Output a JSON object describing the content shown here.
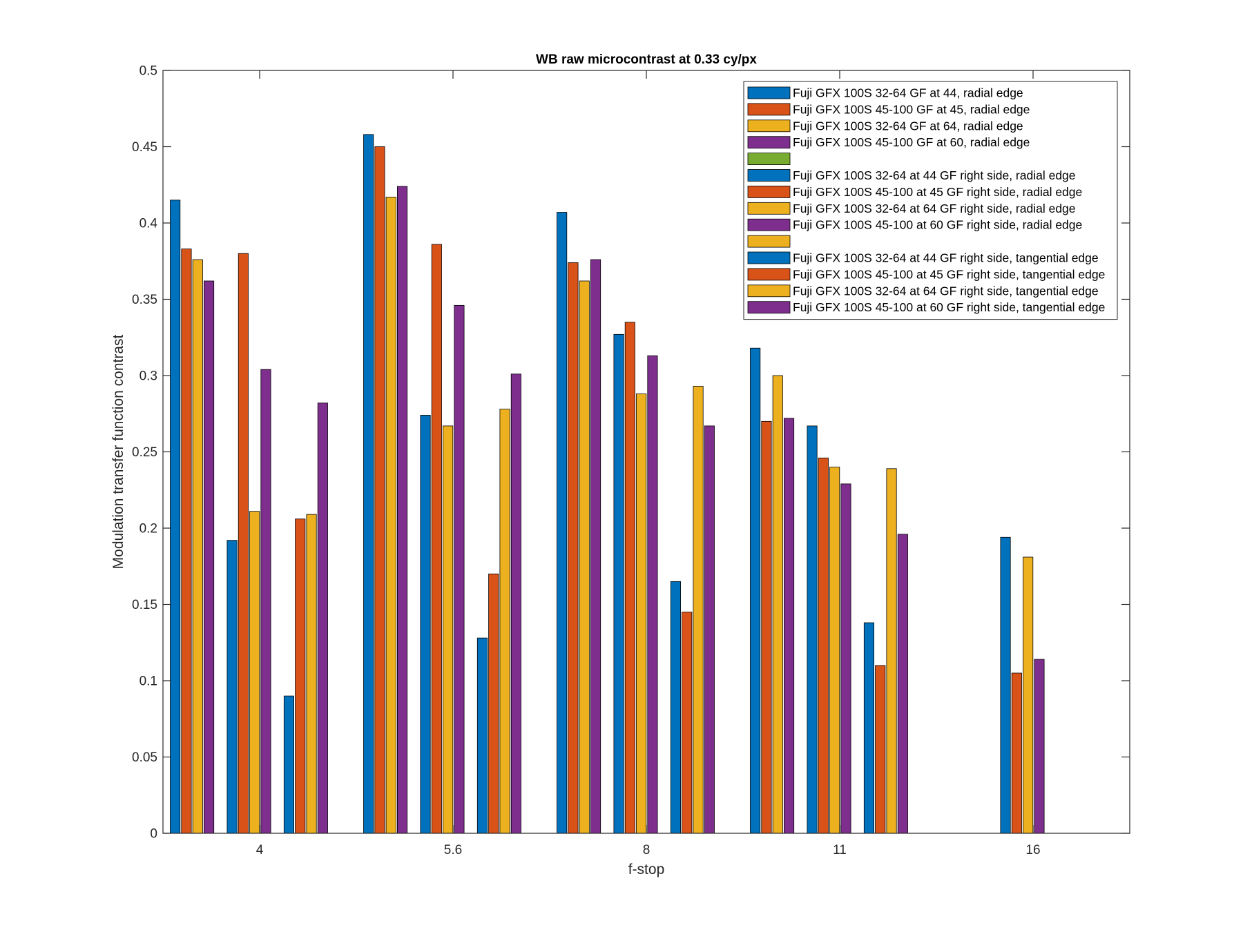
{
  "chart_data": {
    "type": "bar",
    "title": "WB raw  microcontrast at 0.33 cy/px",
    "xlabel": "f-stop",
    "ylabel": "Modulation transfer function contrast",
    "ylim": [
      0,
      0.5
    ],
    "yticks": [
      "0",
      "0.05",
      "0.1",
      "0.15",
      "0.2",
      "0.25",
      "0.3",
      "0.35",
      "0.4",
      "0.45",
      "0.5"
    ],
    "categories": [
      "4",
      "5.6",
      "8",
      "11",
      "16"
    ],
    "groups_per_category": 3,
    "legend_position": "top-right",
    "colors": {
      "blue": "#0072BD",
      "orange": "#D95319",
      "yellow": "#EDB120",
      "purple": "#7E2F8E",
      "green": "#77AC30"
    },
    "legend": [
      {
        "label": "Fuji GFX 100S 32-64 GF at 44, radial edge",
        "color": "#0072BD"
      },
      {
        "label": "Fuji GFX 100S 45-100 GF at 45, radial edge",
        "color": "#D95319"
      },
      {
        "label": "Fuji GFX 100S 32-64 GF at 64, radial edge",
        "color": "#EDB120"
      },
      {
        "label": "Fuji GFX 100S 45-100 GF at 60, radial edge",
        "color": "#7E2F8E"
      },
      {
        "label": "",
        "color": "#77AC30"
      },
      {
        "label": "Fuji GFX 100S 32-64 at 44 GF right side, radial edge",
        "color": "#0072BD"
      },
      {
        "label": "Fuji GFX 100S 45-100 at 45 GF right side, radial edge",
        "color": "#D95319"
      },
      {
        "label": "Fuji GFX 100S 32-64 at 64 GF right side, radial edge",
        "color": "#EDB120"
      },
      {
        "label": "Fuji GFX 100S 45-100 at 60 GF right side, radial edge",
        "color": "#7E2F8E"
      },
      {
        "label": "",
        "color": "#EDB120"
      },
      {
        "label": "Fuji GFX 100S 32-64 at 44 GF right side, tangential edge",
        "color": "#0072BD"
      },
      {
        "label": "Fuji GFX 100S 45-100 at 45 GF right side, tangential edge",
        "color": "#D95319"
      },
      {
        "label": "Fuji GFX 100S 32-64 at 64 GF right side, tangential edge",
        "color": "#EDB120"
      },
      {
        "label": "Fuji GFX 100S 45-100 at 60 GF right side, tangential edge",
        "color": "#7E2F8E"
      }
    ],
    "series": [
      {
        "name": "Fuji GFX 100S 32-64 GF at 44, radial edge",
        "color": "#0072BD",
        "group": 0,
        "slot": 0,
        "values": [
          0.415,
          0.458,
          0.407,
          0.318,
          0.0
        ]
      },
      {
        "name": "Fuji GFX 100S 45-100 GF at 45, radial edge",
        "color": "#D95319",
        "group": 0,
        "slot": 1,
        "values": [
          0.383,
          0.45,
          0.374,
          0.27,
          0.0
        ]
      },
      {
        "name": "Fuji GFX 100S 32-64 GF at 64, radial edge",
        "color": "#EDB120",
        "group": 0,
        "slot": 2,
        "values": [
          0.376,
          0.417,
          0.362,
          0.3,
          0.0
        ]
      },
      {
        "name": "Fuji GFX 100S 45-100 GF at 60, radial edge",
        "color": "#7E2F8E",
        "group": 0,
        "slot": 3,
        "values": [
          0.362,
          0.424,
          0.376,
          0.272,
          0.0
        ]
      },
      {
        "name": "Fuji GFX 100S 32-64 at 44 GF right side, radial edge",
        "color": "#0072BD",
        "group": 1,
        "slot": 0,
        "values": [
          0.192,
          0.274,
          0.327,
          0.267,
          0.194
        ]
      },
      {
        "name": "Fuji GFX 100S 45-100 at 45 GF right side, radial edge",
        "color": "#D95319",
        "group": 1,
        "slot": 1,
        "values": [
          0.38,
          0.386,
          0.335,
          0.246,
          0.105
        ]
      },
      {
        "name": "Fuji GFX 100S 32-64 at 64 GF right side, radial edge",
        "color": "#EDB120",
        "group": 1,
        "slot": 2,
        "values": [
          0.211,
          0.267,
          0.288,
          0.24,
          0.181
        ]
      },
      {
        "name": "Fuji GFX 100S 45-100 at 60 GF right side, radial edge",
        "color": "#7E2F8E",
        "group": 1,
        "slot": 3,
        "values": [
          0.304,
          0.346,
          0.313,
          0.229,
          0.114
        ]
      },
      {
        "name": "Fuji GFX 100S 32-64 at 44 GF right side, tangential edge",
        "color": "#0072BD",
        "group": 2,
        "slot": 0,
        "values": [
          0.09,
          0.128,
          0.165,
          0.138,
          0.0
        ]
      },
      {
        "name": "Fuji GFX 100S 45-100 at 45 GF right side, tangential edge",
        "color": "#D95319",
        "group": 2,
        "slot": 1,
        "values": [
          0.206,
          0.17,
          0.145,
          0.11,
          0.0
        ]
      },
      {
        "name": "Fuji GFX 100S 32-64 at 64 GF right side, tangential edge",
        "color": "#EDB120",
        "group": 2,
        "slot": 2,
        "values": [
          0.209,
          0.278,
          0.293,
          0.239,
          0.0
        ]
      },
      {
        "name": "Fuji GFX 100S 45-100 at 60 GF right side, tangential edge",
        "color": "#7E2F8E",
        "group": 2,
        "slot": 3,
        "values": [
          0.282,
          0.301,
          0.267,
          0.196,
          0.0
        ]
      }
    ]
  }
}
